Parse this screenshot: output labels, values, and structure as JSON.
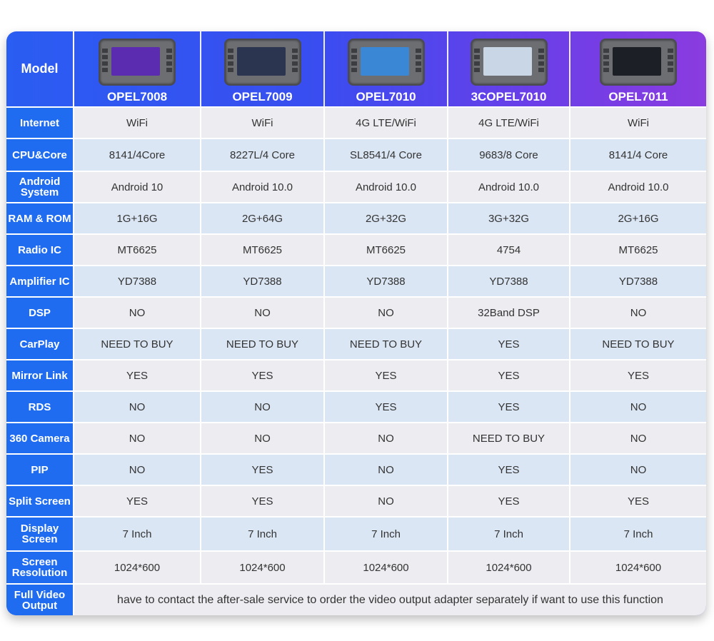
{
  "header_label": "Model",
  "models": [
    {
      "name": "OPEL7008",
      "screen_color": "#5b2bb0"
    },
    {
      "name": "OPEL7009",
      "screen_color": "#2c3550"
    },
    {
      "name": "OPEL7010",
      "screen_color": "#3a87d6"
    },
    {
      "name": "3COPEL7010",
      "screen_color": "#c9d6e6"
    },
    {
      "name": "OPEL7011",
      "screen_color": "#1d1f26"
    }
  ],
  "rows": [
    {
      "label": "Internet",
      "values": [
        "WiFi",
        "WiFi",
        "4G LTE/WiFi",
        "4G LTE/WiFi",
        "WiFi"
      ]
    },
    {
      "label": "CPU&Core",
      "values": [
        "8141/4Core",
        "8227L/4 Core",
        "SL8541/4 Core",
        "9683/8 Core",
        "8141/4 Core"
      ]
    },
    {
      "label": "Android System",
      "values": [
        "Android 10",
        "Android 10.0",
        "Android 10.0",
        "Android 10.0",
        "Android 10.0"
      ]
    },
    {
      "label": "RAM & ROM",
      "values": [
        "1G+16G",
        "2G+64G",
        "2G+32G",
        "3G+32G",
        "2G+16G"
      ]
    },
    {
      "label": "Radio IC",
      "values": [
        "MT6625",
        "MT6625",
        "MT6625",
        "4754",
        "MT6625"
      ]
    },
    {
      "label": "Amplifier IC",
      "values": [
        "YD7388",
        "YD7388",
        "YD7388",
        "YD7388",
        "YD7388"
      ]
    },
    {
      "label": "DSP",
      "values": [
        "NO",
        "NO",
        "NO",
        "32Band DSP",
        "NO"
      ]
    },
    {
      "label": "CarPlay",
      "values": [
        "NEED TO BUY",
        "NEED TO BUY",
        "NEED TO BUY",
        "YES",
        "NEED TO BUY"
      ]
    },
    {
      "label": "Mirror Link",
      "values": [
        "YES",
        "YES",
        "YES",
        "YES",
        "YES"
      ]
    },
    {
      "label": "RDS",
      "values": [
        "NO",
        "NO",
        "YES",
        "YES",
        "NO"
      ]
    },
    {
      "label": "360 Camera",
      "values": [
        "NO",
        "NO",
        "NO",
        "NEED TO BUY",
        "NO"
      ]
    },
    {
      "label": "PIP",
      "values": [
        "NO",
        "YES",
        "NO",
        "YES",
        "NO"
      ]
    },
    {
      "label": "Split Screen",
      "values": [
        "YES",
        "YES",
        "NO",
        "YES",
        "YES"
      ]
    },
    {
      "label": "Display Screen",
      "values": [
        "7 Inch",
        "7 Inch",
        "7 Inch",
        "7 Inch",
        "7 Inch"
      ]
    },
    {
      "label": "Screen Resolution",
      "values": [
        "1024*600",
        "1024*600",
        "1024*600",
        "1024*600",
        "1024*600"
      ]
    }
  ],
  "footer": {
    "label": "Full Video Output",
    "note": "have to contact the after-sale service to order the video output adapter separately if want to use this function"
  },
  "colors": {
    "label_bg": "#1f6cf0",
    "row_odd": "#ececf1",
    "row_even": "#dbe6f4"
  }
}
